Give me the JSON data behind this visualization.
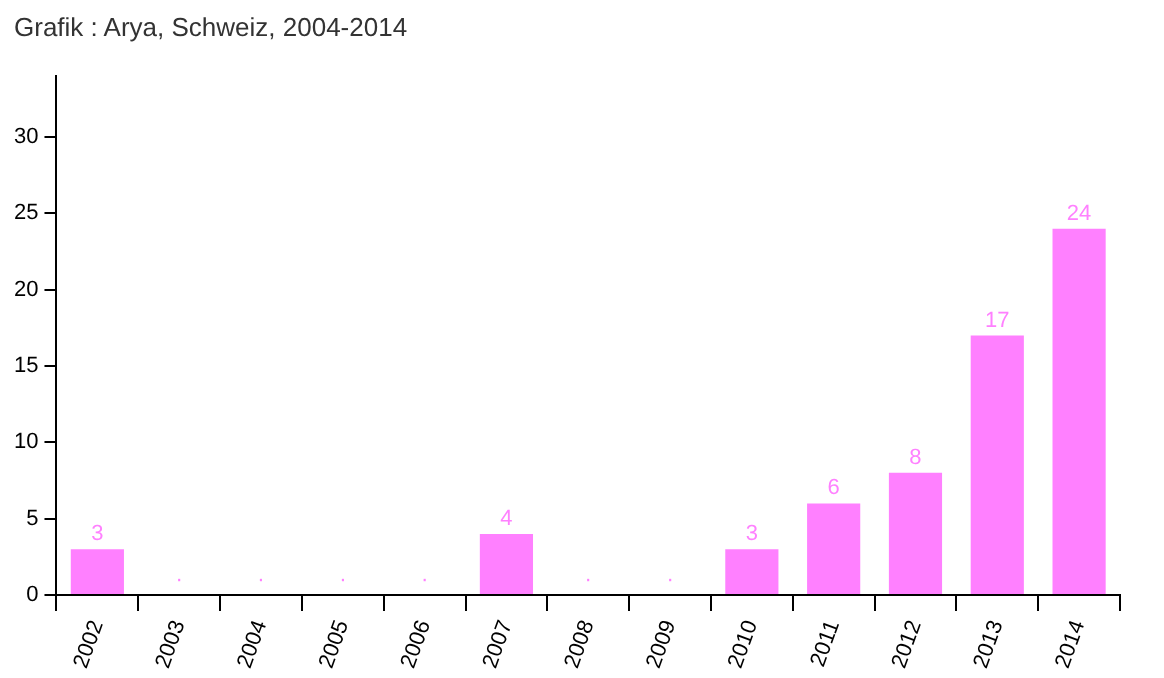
{
  "chart_data": {
    "type": "bar",
    "title": "Grafik : Arya, Schweiz, 2004-2014",
    "categories": [
      "2002",
      "2003",
      "2004",
      "2005",
      "2006",
      "2007",
      "2008",
      "2009",
      "2010",
      "2011",
      "2012",
      "2013",
      "2014"
    ],
    "values": [
      3,
      0,
      0,
      0,
      0,
      4,
      0,
      0,
      3,
      6,
      8,
      17,
      24
    ],
    "value_labels": [
      "3",
      "·",
      "·",
      "·",
      "·",
      "4",
      "·",
      "·",
      "3",
      "6",
      "8",
      "17",
      "24"
    ],
    "color": "#ff80ff",
    "ylim": [
      0,
      34
    ],
    "yticks": [
      0,
      5,
      10,
      15,
      20,
      25,
      30
    ],
    "grid": false,
    "legend": false
  }
}
